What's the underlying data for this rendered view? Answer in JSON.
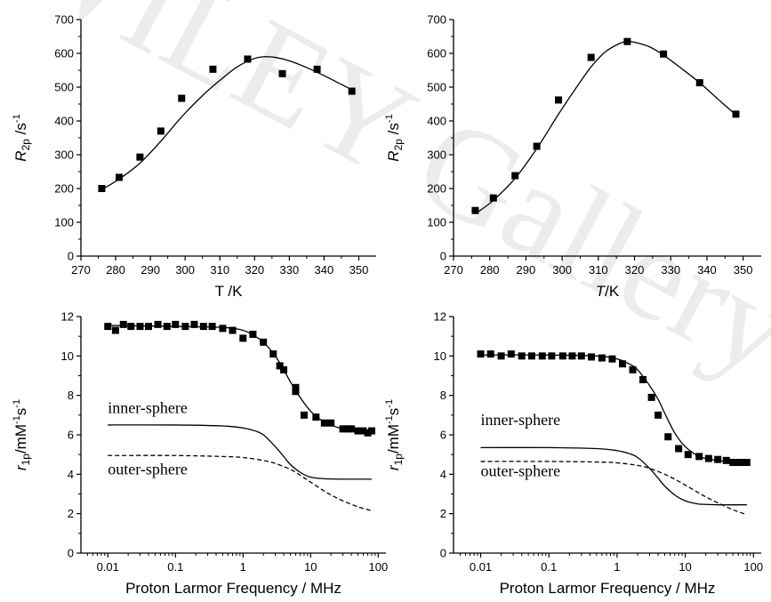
{
  "colors": {
    "ink": "#000000",
    "background": "#ffffff",
    "watermark": "#e6e6e6"
  },
  "watermark": {
    "text": "WILEY Gallery"
  },
  "chart_data": [
    {
      "type": "scatter",
      "ylabel": "R2p /s-1",
      "ylabel_main": "R",
      "ylabel_sub": "2p",
      "ylabel_unit": " /s",
      "ylabel_sup": "-1",
      "ylabel_italic": true,
      "xlabel": "T /K",
      "xlabel_italic_part": "",
      "xlabel_rest": "T /K",
      "xlim": [
        270,
        355
      ],
      "ylim": [
        0,
        700
      ],
      "xscale": "linear",
      "xticks": [
        "270",
        "280",
        "290",
        "300",
        "310",
        "320",
        "330",
        "340",
        "350"
      ],
      "yticks": [
        "0",
        "100",
        "200",
        "300",
        "400",
        "500",
        "600",
        "700"
      ],
      "grid": false,
      "series": [
        {
          "kind": "points",
          "x": [
            276,
            281,
            287,
            293,
            299,
            308,
            318,
            328,
            338,
            348
          ],
          "y": [
            200,
            233,
            293,
            370,
            467,
            553,
            583,
            540,
            553,
            488
          ]
        },
        {
          "kind": "fit",
          "x": [
            276,
            281,
            287,
            293,
            299,
            305,
            310,
            315,
            320,
            323,
            326,
            330,
            335,
            340,
            345,
            348
          ],
          "y": [
            197,
            228,
            275,
            340,
            412,
            475,
            520,
            560,
            585,
            590,
            588,
            578,
            558,
            534,
            508,
            492
          ]
        }
      ]
    },
    {
      "type": "scatter",
      "ylabel": "R2p /s-1",
      "ylabel_main": "R",
      "ylabel_sub": "2p",
      "ylabel_unit": " /s",
      "ylabel_sup": "-1",
      "ylabel_italic": true,
      "xlabel": "T/K",
      "xlabel_italic_part": "T",
      "xlabel_rest": "/K",
      "xlim": [
        270,
        355
      ],
      "ylim": [
        0,
        700
      ],
      "xscale": "linear",
      "xticks": [
        "270",
        "280",
        "290",
        "300",
        "310",
        "320",
        "330",
        "340",
        "350"
      ],
      "yticks": [
        "0",
        "100",
        "200",
        "300",
        "400",
        "500",
        "600",
        "700"
      ],
      "grid": false,
      "series": [
        {
          "kind": "points",
          "x": [
            276,
            281,
            287,
            293,
            299,
            308,
            318,
            328,
            338,
            348
          ],
          "y": [
            135,
            172,
            238,
            325,
            462,
            588,
            635,
            598,
            513,
            420
          ]
        },
        {
          "kind": "fit",
          "x": [
            276,
            281,
            287,
            293,
            299,
            304,
            308,
            312,
            316,
            318,
            320,
            324,
            328,
            333,
            338,
            343,
            348
          ],
          "y": [
            125,
            165,
            230,
            318,
            420,
            500,
            560,
            605,
            630,
            635,
            633,
            620,
            595,
            555,
            513,
            465,
            418
          ]
        }
      ]
    },
    {
      "type": "scatter",
      "ylabel": "r1p/mM-1s-1",
      "ylabel_main": "r",
      "ylabel_sub": "1p",
      "ylabel_unit": "/mM",
      "ylabel_sup": "-1",
      "ylabel_unit2": "s",
      "ylabel_sup2": "-1",
      "xlabel": "Proton Larmor Frequency / MHz",
      "xlim": [
        0.004,
        130
      ],
      "ylim": [
        0,
        12
      ],
      "xscale": "log",
      "xticks": [
        "0.01",
        "0.1",
        "1",
        "10",
        "100"
      ],
      "yticks": [
        "0",
        "2",
        "4",
        "6",
        "8",
        "10",
        "12"
      ],
      "grid": false,
      "annotations": [
        {
          "text": "inner-sphere",
          "x": 0.01,
          "y": 7.1
        },
        {
          "text": "outer-sphere",
          "x": 0.01,
          "y": 4.0
        }
      ],
      "series": [
        {
          "kind": "points",
          "x": [
            0.01,
            0.013,
            0.017,
            0.022,
            0.03,
            0.04,
            0.055,
            0.075,
            0.1,
            0.14,
            0.19,
            0.26,
            0.35,
            0.5,
            0.7,
            1.0,
            1.4,
            2.0,
            2.8,
            3.5,
            4.0,
            6.0,
            6.0,
            8.0,
            12,
            16,
            20,
            30,
            35,
            40,
            50,
            60,
            70,
            80
          ],
          "y": [
            11.5,
            11.3,
            11.6,
            11.5,
            11.5,
            11.5,
            11.6,
            11.5,
            11.6,
            11.5,
            11.6,
            11.5,
            11.5,
            11.4,
            11.3,
            10.9,
            11.1,
            10.7,
            10.1,
            9.5,
            9.3,
            8.4,
            8.2,
            7.0,
            6.9,
            6.6,
            6.6,
            6.3,
            6.3,
            6.3,
            6.2,
            6.2,
            6.1,
            6.2
          ]
        },
        {
          "kind": "fit",
          "x": [
            0.01,
            0.1,
            0.5,
            1,
            1.5,
            2,
            3,
            4,
            5,
            7,
            10,
            15,
            20,
            30,
            50,
            80
          ],
          "y": [
            11.55,
            11.5,
            11.45,
            11.3,
            11.0,
            10.7,
            10.0,
            9.3,
            8.7,
            7.9,
            7.2,
            6.7,
            6.5,
            6.3,
            6.2,
            6.2
          ]
        },
        {
          "kind": "line",
          "name": "inner-sphere",
          "x": [
            0.01,
            0.1,
            0.5,
            1,
            1.5,
            2,
            3,
            4,
            5,
            7,
            10,
            15,
            20,
            30,
            50,
            80
          ],
          "y": [
            6.5,
            6.5,
            6.45,
            6.35,
            6.2,
            6.0,
            5.4,
            4.9,
            4.5,
            4.1,
            3.85,
            3.78,
            3.76,
            3.75,
            3.75,
            3.75
          ]
        },
        {
          "kind": "dashed",
          "name": "outer-sphere",
          "x": [
            0.01,
            0.1,
            0.5,
            1,
            2,
            3,
            5,
            7,
            10,
            15,
            20,
            30,
            50,
            80
          ],
          "y": [
            4.95,
            4.95,
            4.9,
            4.85,
            4.7,
            4.55,
            4.25,
            3.95,
            3.6,
            3.2,
            2.95,
            2.65,
            2.35,
            2.15
          ]
        }
      ]
    },
    {
      "type": "scatter",
      "ylabel": "r1p/mM-1s-1",
      "ylabel_main": "r",
      "ylabel_sub": "1p",
      "ylabel_unit": "/mM",
      "ylabel_sup": "-1",
      "ylabel_unit2": "s",
      "ylabel_sup2": "-1",
      "xlabel": "Proton Larmor Frequency / MHz",
      "xlim": [
        0.004,
        130
      ],
      "ylim": [
        0,
        12
      ],
      "xscale": "log",
      "xticks": [
        "0.01",
        "0.1",
        "1",
        "10",
        "100"
      ],
      "yticks": [
        "0",
        "2",
        "4",
        "6",
        "8",
        "10",
        "12"
      ],
      "grid": false,
      "annotations": [
        {
          "text": "inner-sphere",
          "x": 0.01,
          "y": 6.5
        },
        {
          "text": "outer-sphere",
          "x": 0.01,
          "y": 3.9
        }
      ],
      "series": [
        {
          "kind": "points",
          "x": [
            0.01,
            0.014,
            0.02,
            0.028,
            0.04,
            0.056,
            0.08,
            0.11,
            0.16,
            0.22,
            0.3,
            0.42,
            0.6,
            0.85,
            1.2,
            1.7,
            2.4,
            3.2,
            4.0,
            5.6,
            8.0,
            11,
            16,
            22,
            30,
            40,
            50,
            60,
            70,
            80
          ],
          "y": [
            10.1,
            10.1,
            10.0,
            10.1,
            10.0,
            10.0,
            10.0,
            10.0,
            10.0,
            10.0,
            10.0,
            9.95,
            9.9,
            9.85,
            9.6,
            9.3,
            8.8,
            7.9,
            7.0,
            5.9,
            5.3,
            5.0,
            4.9,
            4.8,
            4.75,
            4.7,
            4.6,
            4.6,
            4.6,
            4.6
          ]
        },
        {
          "kind": "fit",
          "x": [
            0.01,
            0.1,
            0.5,
            1,
            1.5,
            2,
            3,
            4,
            5,
            7,
            10,
            15,
            20,
            30,
            50,
            80
          ],
          "y": [
            10.05,
            10.05,
            10.0,
            9.85,
            9.6,
            9.3,
            8.5,
            7.8,
            7.1,
            6.1,
            5.4,
            4.95,
            4.8,
            4.7,
            4.62,
            4.6
          ]
        },
        {
          "kind": "line",
          "name": "inner-sphere",
          "x": [
            0.01,
            0.1,
            0.5,
            1,
            1.5,
            2,
            3,
            4,
            5,
            7,
            10,
            15,
            20,
            30,
            50,
            80
          ],
          "y": [
            5.35,
            5.35,
            5.3,
            5.2,
            5.05,
            4.85,
            4.3,
            3.8,
            3.4,
            2.95,
            2.65,
            2.5,
            2.47,
            2.45,
            2.45,
            2.45
          ]
        },
        {
          "kind": "dashed",
          "name": "outer-sphere",
          "x": [
            0.01,
            0.1,
            0.5,
            1,
            2,
            3,
            5,
            7,
            10,
            15,
            20,
            30,
            50,
            80
          ],
          "y": [
            4.65,
            4.65,
            4.62,
            4.58,
            4.45,
            4.3,
            4.0,
            3.75,
            3.45,
            3.1,
            2.85,
            2.55,
            2.2,
            1.95
          ]
        }
      ]
    }
  ]
}
